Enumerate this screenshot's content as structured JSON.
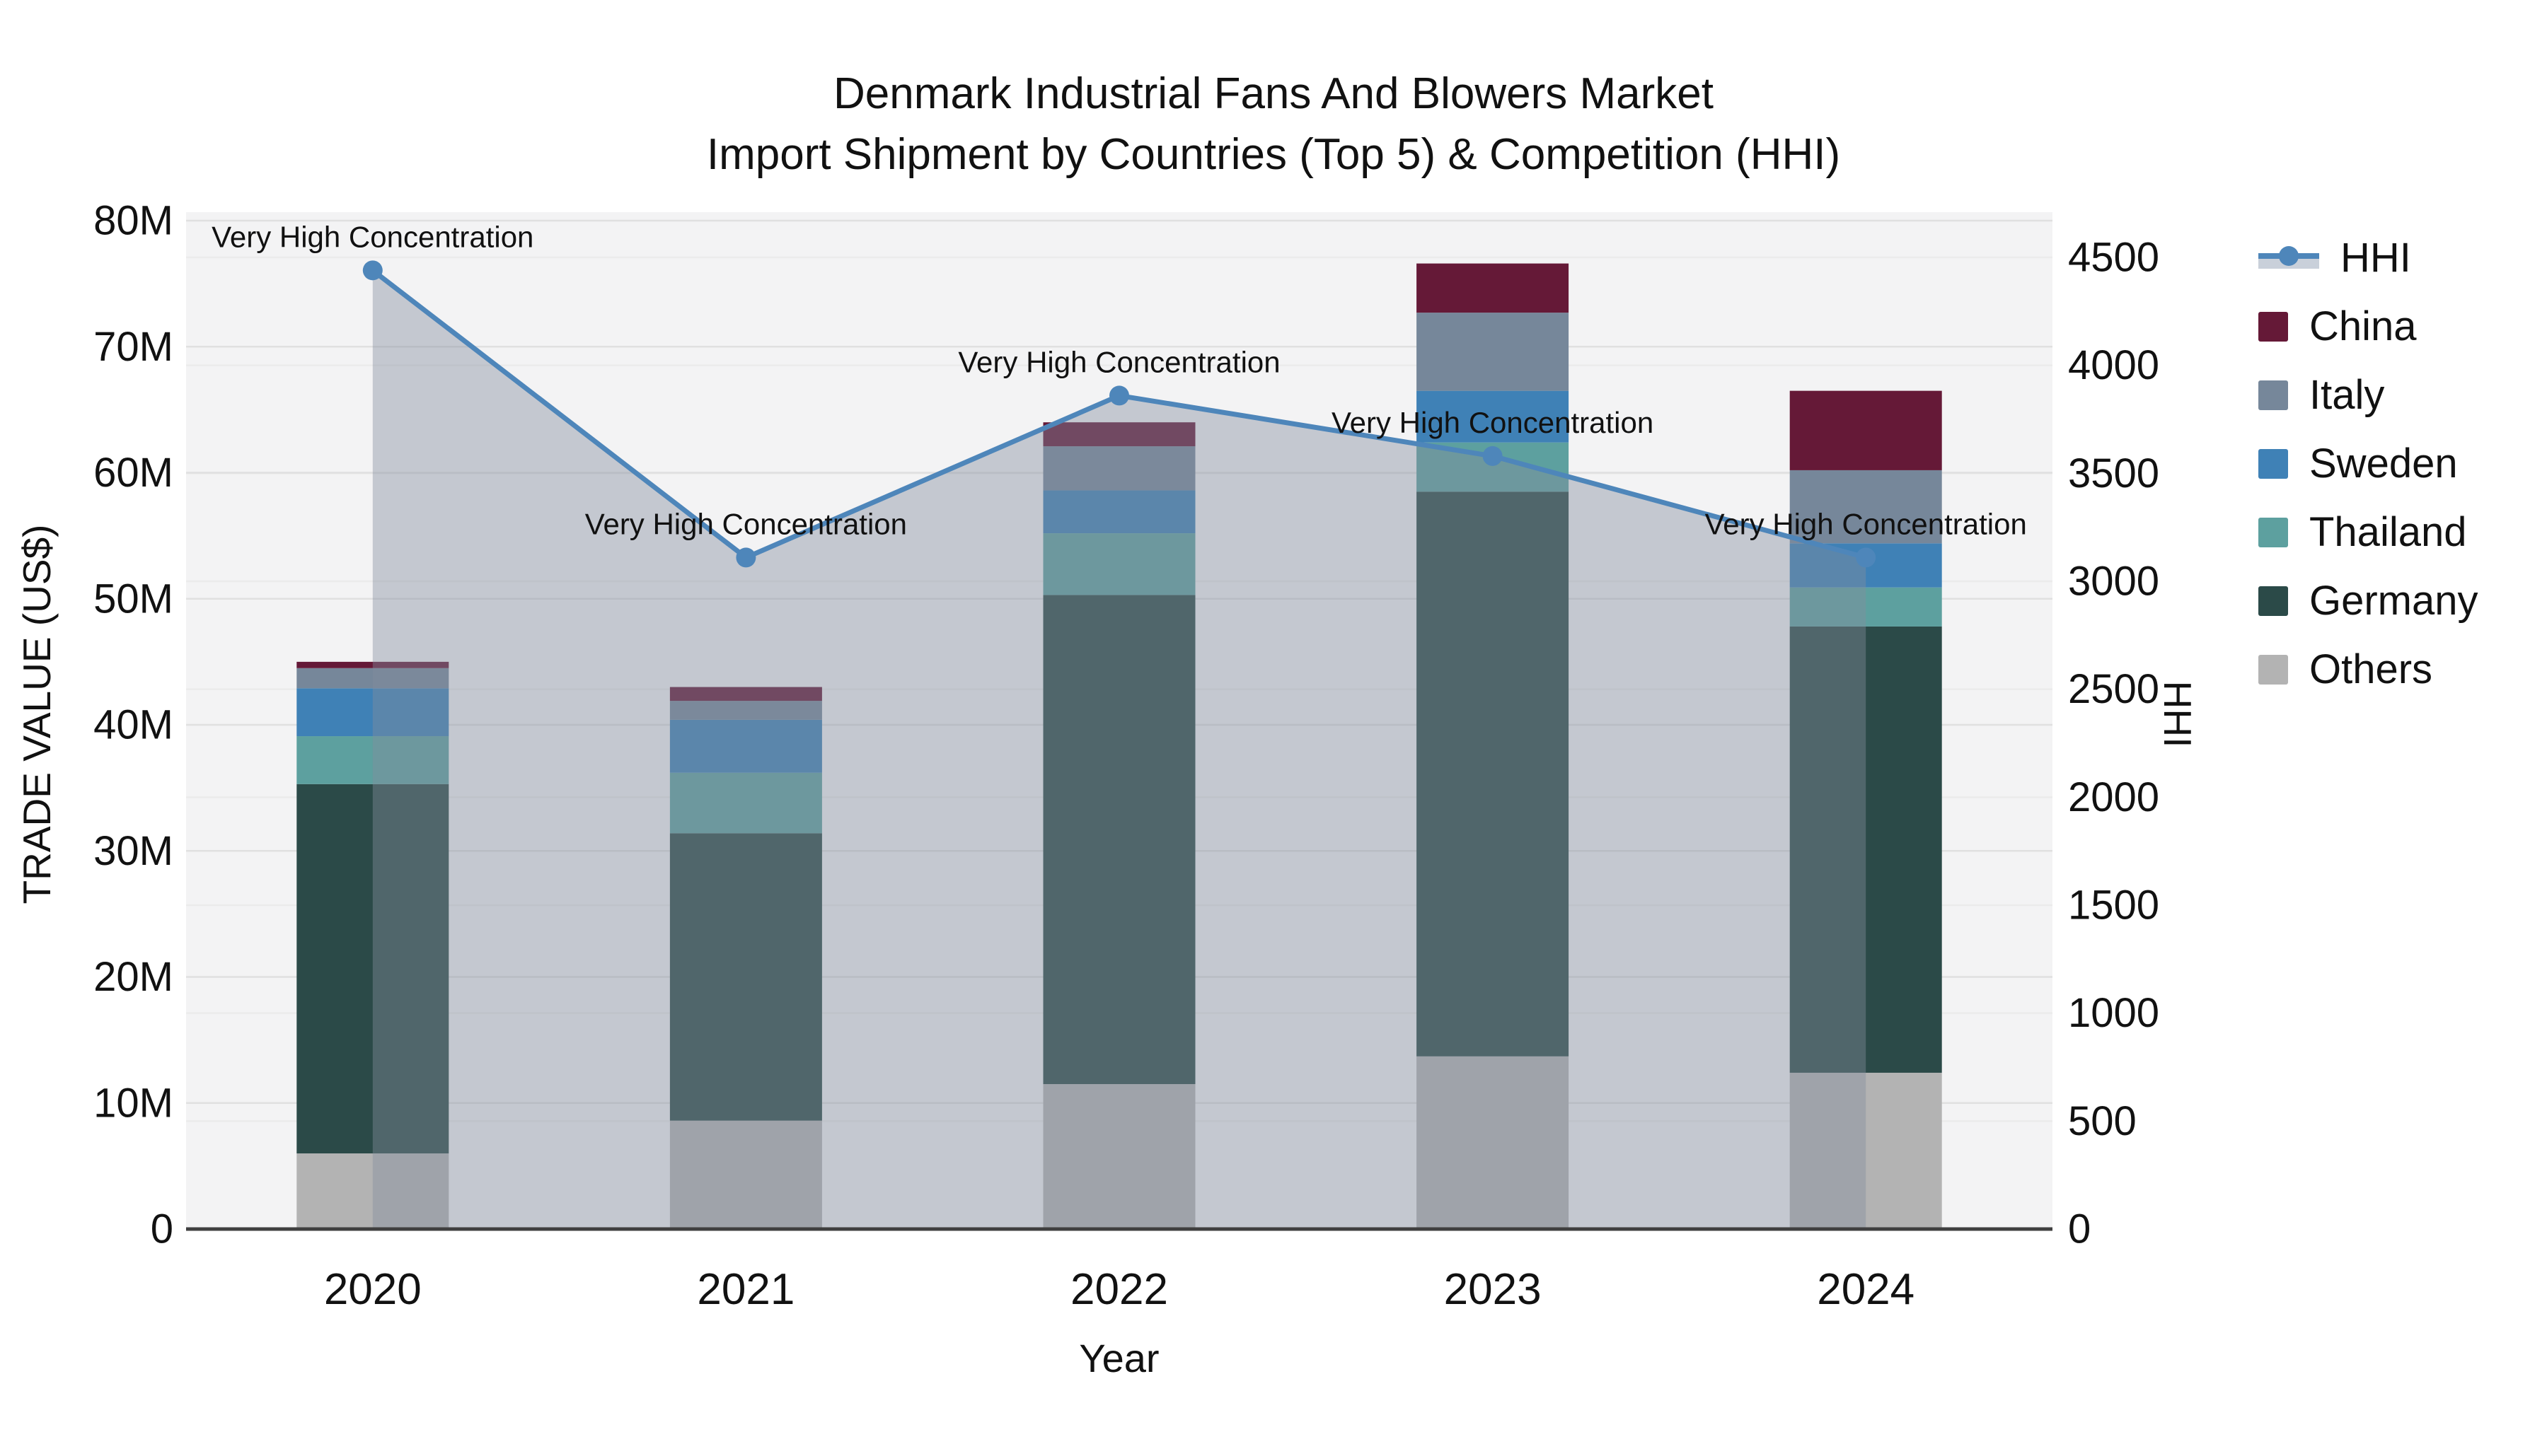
{
  "title": {
    "line1": "Denmark Industrial Fans And Blowers Market",
    "line2": "Import Shipment by Countries (Top 5) & Competition (HHI)"
  },
  "axes": {
    "left": {
      "label": "TRADE VALUE (US$)",
      "tick_labels": [
        "0",
        "10M",
        "20M",
        "30M",
        "40M",
        "50M",
        "60M",
        "70M",
        "80M"
      ],
      "tick_values": [
        0,
        10,
        20,
        30,
        40,
        50,
        60,
        70,
        80
      ],
      "range_millions": [
        0,
        80
      ]
    },
    "right": {
      "label": "HHI",
      "tick_labels": [
        "0",
        "500",
        "1000",
        "1500",
        "2000",
        "2500",
        "3000",
        "3500",
        "4000",
        "4500"
      ],
      "tick_values": [
        0,
        500,
        1000,
        1500,
        2000,
        2500,
        3000,
        3500,
        4000,
        4500
      ],
      "range": [
        0,
        4500
      ]
    },
    "x": {
      "label": "Year",
      "categories": [
        "2020",
        "2021",
        "2022",
        "2023",
        "2024"
      ]
    }
  },
  "legend": {
    "items": [
      {
        "label": "HHI",
        "type": "line",
        "color": "#4e86ba"
      },
      {
        "label": "China",
        "type": "box",
        "color": "#651937"
      },
      {
        "label": "Italy",
        "type": "box",
        "color": "#76879a"
      },
      {
        "label": "Sweden",
        "type": "box",
        "color": "#3f81b6"
      },
      {
        "label": "Thailand",
        "type": "box",
        "color": "#5da09f"
      },
      {
        "label": "Germany",
        "type": "box",
        "color": "#2b4a48"
      },
      {
        "label": "Others",
        "type": "box",
        "color": "#b3b3b3"
      }
    ]
  },
  "chart_data": {
    "type": "combo",
    "bar_type": "stacked",
    "units": {
      "bars": "million US$",
      "line": "HHI index (right axis)"
    },
    "categories": [
      "2020",
      "2021",
      "2022",
      "2023",
      "2024"
    ],
    "bar_stack_order_bottom_to_top": [
      "Others",
      "Germany",
      "Thailand",
      "Sweden",
      "Italy",
      "China"
    ],
    "bar_series": [
      {
        "name": "Others",
        "color": "#b3b3b3",
        "values": [
          6.0,
          8.6,
          11.5,
          13.7,
          12.4
        ]
      },
      {
        "name": "Germany",
        "color": "#2b4a48",
        "values": [
          29.3,
          22.8,
          38.8,
          44.8,
          35.4
        ]
      },
      {
        "name": "Thailand",
        "color": "#5da09f",
        "values": [
          3.8,
          4.8,
          4.9,
          3.9,
          3.1
        ]
      },
      {
        "name": "Sweden",
        "color": "#3f81b6",
        "values": [
          3.8,
          4.2,
          3.4,
          4.1,
          3.5
        ]
      },
      {
        "name": "Italy",
        "color": "#76879a",
        "values": [
          1.6,
          1.5,
          3.5,
          6.2,
          5.8
        ]
      },
      {
        "name": "China",
        "color": "#651937",
        "values": [
          0.5,
          1.1,
          1.9,
          3.9,
          6.3
        ]
      }
    ],
    "bar_totals_millions": [
      45.0,
      43.0,
      64.0,
      76.6,
      66.5
    ],
    "line_series": {
      "name": "HHI",
      "color": "#4e86ba",
      "area_fill": "rgba(130,141,157,0.42)",
      "values": [
        4440,
        3110,
        3860,
        3580,
        3110
      ]
    },
    "annotations": [
      {
        "text": "Very High Concentration",
        "category": "2020"
      },
      {
        "text": "Very High Concentration",
        "category": "2021"
      },
      {
        "text": "Very High Concentration",
        "category": "2022"
      },
      {
        "text": "Very High Concentration",
        "category": "2023"
      },
      {
        "text": "Very High Concentration",
        "category": "2024"
      }
    ],
    "left_ylim": [
      0,
      80
    ],
    "right_ylim": [
      0,
      4500
    ],
    "grid": true,
    "legend_position": "right"
  },
  "style_colors": {
    "plot_background": "#f3f3f4",
    "grid_left_axis": "#e0e0e0",
    "grid_right_axis": "#ebebeb",
    "x_axis_line": "#3f3f3f",
    "text": "#111111"
  }
}
